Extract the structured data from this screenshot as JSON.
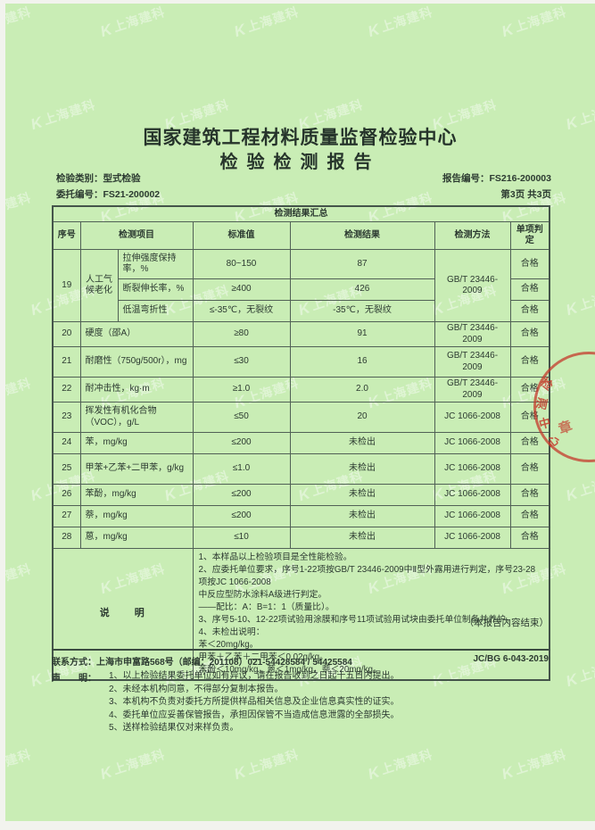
{
  "colors": {
    "page_bg": "#c9edb5",
    "ink": "#2c3a31",
    "table_border": "#516156",
    "stamp_red": "#c43a2c",
    "watermark": "#ffffff"
  },
  "watermark": {
    "logo": "K",
    "text": "上海建科"
  },
  "stamp": {
    "chars": [
      "检",
      "测",
      "中",
      "心",
      "章"
    ]
  },
  "header": {
    "org": "国家建筑工程材料质量监督检验中心",
    "doc_title": "检验检测报告",
    "category_label": "检验类别：",
    "category": "型式检验",
    "report_no_label": "报告编号：",
    "report_no": "FS216-200003",
    "entrust_no_label": "委托编号：",
    "entrust_no": "FS21-200002",
    "page_info": "第3页 共3页"
  },
  "table": {
    "title": "检测结果汇总",
    "head": {
      "no": "序号",
      "item": "检测项目",
      "standard": "标准值",
      "result": "检测结果",
      "method": "检测方法",
      "judge": "单项判定"
    },
    "row19": {
      "no": "19",
      "group": "人工气候老化",
      "method": "GB/T 23446-2009",
      "subs": [
        {
          "item": "拉伸强度保持率，%",
          "standard": "80~150",
          "result": "87",
          "judge": "合格"
        },
        {
          "item": "断裂伸长率，%",
          "standard": "≥400",
          "result": "426",
          "judge": "合格"
        },
        {
          "item": "低温弯折性",
          "standard": "≤-35℃，无裂纹",
          "result": "-35℃，无裂纹",
          "judge": "合格"
        }
      ]
    },
    "rows": [
      {
        "no": "20",
        "item": "硬度（邵A）",
        "standard": "≥80",
        "result": "91",
        "method": "GB/T 23446-2009",
        "judge": "合格"
      },
      {
        "no": "21",
        "item": "耐磨性（750g/500r），mg",
        "standard": "≤30",
        "result": "16",
        "method": "GB/T 23446-2009",
        "judge": "合格"
      },
      {
        "no": "22",
        "item": "耐冲击性，kg·m",
        "standard": "≥1.0",
        "result": "2.0",
        "method": "GB/T 23446-2009",
        "judge": "合格"
      },
      {
        "no": "23",
        "item": "挥发性有机化合物（VOC），g/L",
        "standard": "≤50",
        "result": "20",
        "method": "JC 1066-2008",
        "judge": "合格"
      },
      {
        "no": "24",
        "item": "苯，mg/kg",
        "standard": "≤200",
        "result": "未检出",
        "method": "JC 1066-2008",
        "judge": "合格"
      },
      {
        "no": "25",
        "item": "甲苯+乙苯+二甲苯，g/kg",
        "standard": "≤1.0",
        "result": "未检出",
        "method": "JC 1066-2008",
        "judge": "合格"
      },
      {
        "no": "26",
        "item": "苯酚，mg/kg",
        "standard": "≤200",
        "result": "未检出",
        "method": "JC 1066-2008",
        "judge": "合格"
      },
      {
        "no": "27",
        "item": "萘，mg/kg",
        "standard": "≤200",
        "result": "未检出",
        "method": "JC 1066-2008",
        "judge": "合格"
      },
      {
        "no": "28",
        "item": "蒽，mg/kg",
        "standard": "≤10",
        "result": "未检出",
        "method": "JC 1066-2008",
        "judge": "合格"
      }
    ],
    "notes_label": "说　　明",
    "notes": [
      "1、本样品以上检验项目是全性能检验。",
      "2、应委托单位要求，序号1-22项按GB/T 23446-2009中Ⅱ型外露用进行判定，序号23-28项按JC 1066-2008",
      "中反应型防水涂料A级进行判定。",
      "——配比：A：B=1：1（质量比）。",
      "3、序号5-10、12-22项试验用涂膜和序号11项试验用试块由委托单位制备并养护。",
      "4、未检出说明：",
      "苯＜20mg/kg。",
      "甲苯＋乙苯＋二甲苯＜0.02g/kg。",
      "苯酚＜10mg/kg，蒽＜1mg/kg，萘＜20mg/kg。"
    ]
  },
  "footer": {
    "end_note": "（本报告内容结束）",
    "contact_label": "联系方式：",
    "contact": "上海市申富路568号（邮编：201108）021-54428584 / 54425584",
    "doc_code": "JC/BG 6-043-2019",
    "statement_label": "声　　明：",
    "statement_items": [
      "1、以上检验结果委托单位如有异议，请在报告收到之日起十五日内提出。",
      "2、未经本机构同意，不得部分复制本报告。",
      "3、本机构不负责对委托方所提供样品相关信息及企业信息真实性的证实。",
      "4、委托单位应妥善保管报告，承担因保管不当造成信息泄露的全部损失。",
      "5、送样检验结果仅对来样负责。"
    ]
  }
}
